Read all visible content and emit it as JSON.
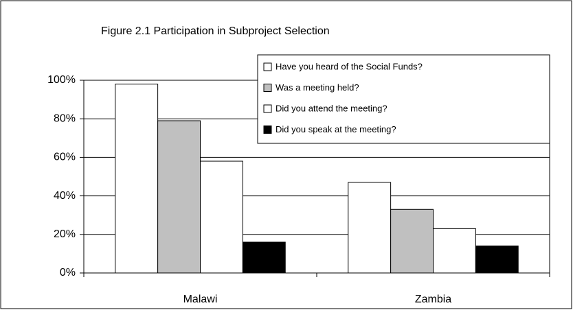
{
  "chart_data": {
    "type": "bar",
    "title": "Figure 2.1 Participation in Subproject Selection",
    "categories": [
      "Malawi",
      "Zambia"
    ],
    "series": [
      {
        "name": "Have you heard of the Social Funds?",
        "color": "#ffffff",
        "values": [
          98,
          47
        ]
      },
      {
        "name": "Was a meeting held?",
        "color": "#c0c0c0",
        "values": [
          79,
          33
        ]
      },
      {
        "name": "Did you attend the meeting?",
        "color": "#ffffff",
        "values": [
          58,
          23
        ]
      },
      {
        "name": "Did you speak at the meeting?",
        "color": "#000000",
        "values": [
          16,
          14
        ]
      }
    ],
    "ylim": [
      0,
      100
    ],
    "yticks": [
      {
        "value": 0,
        "label": "0%"
      },
      {
        "value": 20,
        "label": "20%"
      },
      {
        "value": 40,
        "label": "40%"
      },
      {
        "value": 60,
        "label": "60%"
      },
      {
        "value": 80,
        "label": "80%"
      },
      {
        "value": 100,
        "label": "100%"
      }
    ],
    "grid": true,
    "legend": "top-right"
  }
}
